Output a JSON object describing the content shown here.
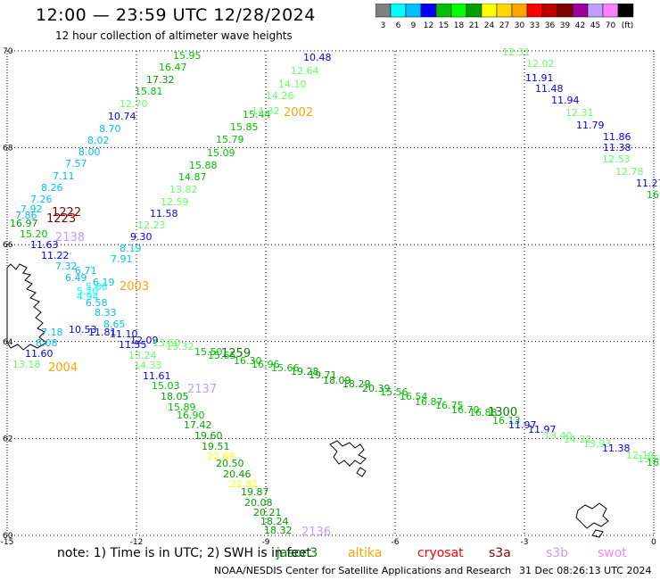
{
  "header": {
    "title": "12:00 — 23:59 UTC 12/28/2024",
    "subtitle": "12 hour collection of altimeter wave heights"
  },
  "scale": {
    "colors": [
      "#808080",
      "#00ffff",
      "#00bfff",
      "#0000ff",
      "#00c000",
      "#00ff00",
      "#00a000",
      "#ffff00",
      "#ffd700",
      "#ffa500",
      "#ff0000",
      "#c00000",
      "#800000",
      "#a000a0",
      "#c0a0ff",
      "#ff80ff",
      "#000000"
    ],
    "labels": [
      "3",
      "6",
      "9",
      "12",
      "15",
      "18",
      "21",
      "24",
      "27",
      "30",
      "33",
      "36",
      "39",
      "42",
      "45",
      "70",
      "(ft)"
    ]
  },
  "axes": {
    "lon_ticks": [
      "-15",
      "-12",
      "-9",
      "-6",
      "-3",
      "0"
    ],
    "lat_ticks": [
      "70",
      "68",
      "66",
      "64",
      "62",
      "60"
    ],
    "lon_range": [
      -15,
      0
    ],
    "lat_range": [
      60,
      70
    ]
  },
  "passes": [
    {
      "id": "1222",
      "color": "#800000"
    },
    {
      "id": "1223",
      "color": "#800000"
    },
    {
      "id": "2138",
      "color": "#c0a0ff"
    },
    {
      "id": "2003",
      "color": "#ffa500"
    },
    {
      "id": "2004",
      "color": "#ffa500"
    },
    {
      "id": "2002",
      "color": "#ffa500"
    },
    {
      "id": "1259",
      "color": "#008000"
    },
    {
      "id": "2137",
      "color": "#c0a0ff"
    },
    {
      "id": "1300",
      "color": "#008000"
    },
    {
      "id": "2136",
      "color": "#c0a0ff"
    }
  ],
  "readings": [
    {
      "v": "15.95",
      "c": "#00c000"
    },
    {
      "v": "16.47",
      "c": "#00c000"
    },
    {
      "v": "17.32",
      "c": "#00a000"
    },
    {
      "v": "15.81",
      "c": "#00c000"
    },
    {
      "v": "12.70",
      "c": "#66ff66"
    },
    {
      "v": "10.74",
      "c": "#0000ff"
    },
    {
      "v": "8.70",
      "c": "#00bfff"
    },
    {
      "v": "8.02",
      "c": "#00bfff"
    },
    {
      "v": "8.00",
      "c": "#00bfff"
    },
    {
      "v": "7.57",
      "c": "#00bfff"
    },
    {
      "v": "7.11",
      "c": "#00bfff"
    },
    {
      "v": "8.26",
      "c": "#00bfff"
    },
    {
      "v": "7.26",
      "c": "#00bfff"
    },
    {
      "v": "7.92",
      "c": "#00bfff"
    },
    {
      "v": "7.86",
      "c": "#00bfff"
    },
    {
      "v": "16.97",
      "c": "#00a000"
    },
    {
      "v": "15.20",
      "c": "#00c000"
    },
    {
      "v": "11.63",
      "c": "#0000ff"
    },
    {
      "v": "11.22",
      "c": "#0000ff"
    },
    {
      "v": "7.32",
      "c": "#00bfff"
    },
    {
      "v": "6.49",
      "c": "#00bfff"
    },
    {
      "v": "6.71",
      "c": "#00bfff"
    },
    {
      "v": "6.19",
      "c": "#00bfff"
    },
    {
      "v": "5.66",
      "c": "#00ffff"
    },
    {
      "v": "5.20",
      "c": "#00ffff"
    },
    {
      "v": "4.94",
      "c": "#00ffff"
    },
    {
      "v": "6.58",
      "c": "#00bfff"
    },
    {
      "v": "8.33",
      "c": "#00bfff"
    },
    {
      "v": "8.65",
      "c": "#00bfff"
    },
    {
      "v": "10.53",
      "c": "#0000ff"
    },
    {
      "v": "11.81",
      "c": "#0000ff"
    },
    {
      "v": "11.10",
      "c": "#0000ff"
    },
    {
      "v": "7.18",
      "c": "#00bfff"
    },
    {
      "v": "8.08",
      "c": "#00bfff"
    },
    {
      "v": "11.60",
      "c": "#0000ff"
    },
    {
      "v": "13.18",
      "c": "#66ff66"
    },
    {
      "v": "12.09",
      "c": "#0000ff"
    },
    {
      "v": "11.55",
      "c": "#0000ff"
    },
    {
      "v": "13.50",
      "c": "#66ff66"
    },
    {
      "v": "13.32",
      "c": "#66ff66"
    },
    {
      "v": "13.24",
      "c": "#66ff66"
    },
    {
      "v": "14.33",
      "c": "#66ff66"
    },
    {
      "v": "15.50",
      "c": "#00c000"
    },
    {
      "v": "15.65",
      "c": "#00c000"
    },
    {
      "v": "16.30",
      "c": "#00c000"
    },
    {
      "v": "16.96",
      "c": "#00c000"
    },
    {
      "v": "15.66",
      "c": "#00c000"
    },
    {
      "v": "19.28",
      "c": "#00a000"
    },
    {
      "v": "19.71",
      "c": "#00a000"
    },
    {
      "v": "18.09",
      "c": "#00a000"
    },
    {
      "v": "18.29",
      "c": "#00a000"
    },
    {
      "v": "20.39",
      "c": "#00a000"
    },
    {
      "v": "15.56",
      "c": "#00c000"
    },
    {
      "v": "16.54",
      "c": "#00c000"
    },
    {
      "v": "16.87",
      "c": "#00c000"
    },
    {
      "v": "16.75",
      "c": "#00c000"
    },
    {
      "v": "16.70",
      "c": "#00c000"
    },
    {
      "v": "16.88",
      "c": "#00c000"
    },
    {
      "v": "16.13",
      "c": "#00c000"
    },
    {
      "v": "11.97",
      "c": "#0000ff"
    },
    {
      "v": "11.97",
      "c": "#0000ff"
    },
    {
      "v": "13.40",
      "c": "#66ff66"
    },
    {
      "v": "14.22",
      "c": "#66ff66"
    },
    {
      "v": "13.93",
      "c": "#66ff66"
    },
    {
      "v": "11.38",
      "c": "#0000ff"
    },
    {
      "v": "12.19",
      "c": "#66ff66"
    },
    {
      "v": "13.62",
      "c": "#66ff66"
    },
    {
      "v": "16.0",
      "c": "#00c000"
    },
    {
      "v": "11.61",
      "c": "#0000ff"
    },
    {
      "v": "15.03",
      "c": "#00c000"
    },
    {
      "v": "18.05",
      "c": "#00a000"
    },
    {
      "v": "15.89",
      "c": "#00c000"
    },
    {
      "v": "16.90",
      "c": "#00c000"
    },
    {
      "v": "17.42",
      "c": "#00a000"
    },
    {
      "v": "19.60",
      "c": "#00a000"
    },
    {
      "v": "19.51",
      "c": "#00a000"
    },
    {
      "v": "22.69",
      "c": "#ffff00"
    },
    {
      "v": "20.50",
      "c": "#00a000"
    },
    {
      "v": "20.46",
      "c": "#00a000"
    },
    {
      "v": "21.81",
      "c": "#ffff00"
    },
    {
      "v": "19.87",
      "c": "#00a000"
    },
    {
      "v": "20.08",
      "c": "#00a000"
    },
    {
      "v": "20.21",
      "c": "#00a000"
    },
    {
      "v": "18.24",
      "c": "#00a000"
    },
    {
      "v": "18.32",
      "c": "#00a000"
    },
    {
      "v": "9.30",
      "c": "#0000ff"
    },
    {
      "v": "8.19",
      "c": "#00bfff"
    },
    {
      "v": "7.91",
      "c": "#00bfff"
    },
    {
      "v": "11.58",
      "c": "#0000ff"
    },
    {
      "v": "12.23",
      "c": "#66ff66"
    },
    {
      "v": "12.59",
      "c": "#66ff66"
    },
    {
      "v": "13.82",
      "c": "#66ff66"
    },
    {
      "v": "14.87",
      "c": "#00c000"
    },
    {
      "v": "15.88",
      "c": "#00c000"
    },
    {
      "v": "15.09",
      "c": "#00c000"
    },
    {
      "v": "15.79",
      "c": "#00c000"
    },
    {
      "v": "15.85",
      "c": "#00c000"
    },
    {
      "v": "15.44",
      "c": "#00c000"
    },
    {
      "v": "14.32",
      "c": "#66ff66"
    },
    {
      "v": "14.26",
      "c": "#66ff66"
    },
    {
      "v": "14.10",
      "c": "#66ff66"
    },
    {
      "v": "12.64",
      "c": "#66ff66"
    },
    {
      "v": "10.48",
      "c": "#0000ff"
    },
    {
      "v": "12.31",
      "c": "#66ff66"
    },
    {
      "v": "12.02",
      "c": "#66ff66"
    },
    {
      "v": "11.91",
      "c": "#0000ff"
    },
    {
      "v": "11.48",
      "c": "#0000ff"
    },
    {
      "v": "11.94",
      "c": "#0000ff"
    },
    {
      "v": "12.31",
      "c": "#66ff66"
    },
    {
      "v": "11.79",
      "c": "#0000ff"
    },
    {
      "v": "11.86",
      "c": "#0000ff"
    },
    {
      "v": "11.38",
      "c": "#0000ff"
    },
    {
      "v": "12.53",
      "c": "#66ff66"
    },
    {
      "v": "12.78",
      "c": "#66ff66"
    },
    {
      "v": "11.27",
      "c": "#0000ff"
    },
    {
      "v": "16.",
      "c": "#00c000"
    }
  ],
  "footer": {
    "note": "note:  1) Time is in UTC;  2) SWH is in feet",
    "satellites": [
      {
        "name": "jason3",
        "color": "#008000"
      },
      {
        "name": "altika",
        "color": "#ffa500"
      },
      {
        "name": "cryosat",
        "color": "#ff0000"
      },
      {
        "name": "s3a",
        "color": "#800000"
      },
      {
        "name": "s3b",
        "color": "#c0a0ff"
      },
      {
        "name": "swot",
        "color": "#ff80ff"
      }
    ],
    "credit": "NOAA/NESDIS Center for Satellite Applications and Research",
    "timestamp": "31 Dec 08:26:13 UTC 2024"
  }
}
